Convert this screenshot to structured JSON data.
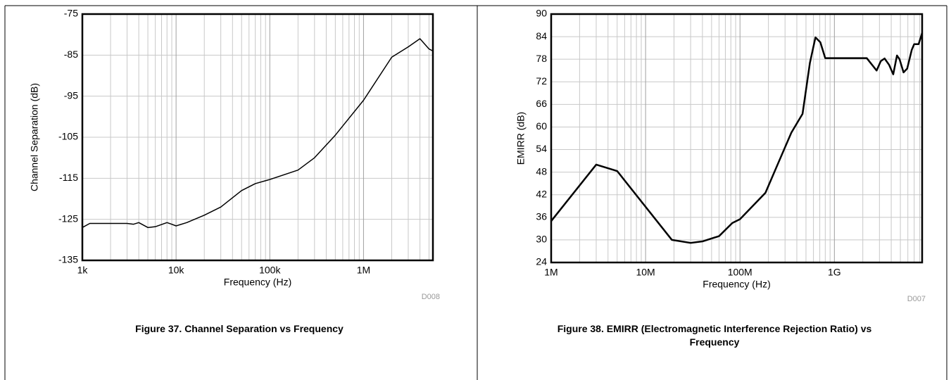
{
  "chart_data": [
    {
      "type": "line",
      "caption": "Figure 37. Channel Separation vs Frequency",
      "code": "D008",
      "xlabel": "Frequency (Hz)",
      "ylabel": "Channel Separation (dB)",
      "xscale": "log",
      "grid": true,
      "minor_grid": true,
      "color": "#000000",
      "line_width": 1.5,
      "xlim": [
        1000,
        5500000
      ],
      "ylim": [
        -135,
        -75
      ],
      "xticks": [
        {
          "value": 1000,
          "label": "1k"
        },
        {
          "value": 10000,
          "label": "10k"
        },
        {
          "value": 100000,
          "label": "100k"
        },
        {
          "value": 1000000,
          "label": "1M"
        }
      ],
      "yticks": [
        -135,
        -125,
        -115,
        -105,
        -95,
        -85,
        -75
      ],
      "x": [
        1000,
        1200,
        1500,
        2000,
        3000,
        3500,
        4000,
        5000,
        6000,
        8000,
        9000,
        10000,
        13000,
        20000,
        30000,
        50000,
        70000,
        100000,
        200000,
        300000,
        500000,
        1000000,
        2000000,
        3000000,
        4000000,
        5000000,
        5500000
      ],
      "values": [
        -127,
        -126,
        -126,
        -126,
        -126,
        -126.2,
        -125.8,
        -127,
        -126.8,
        -125.8,
        -126.2,
        -126.6,
        -125.8,
        -124,
        -122,
        -118,
        -116.3,
        -115.3,
        -113,
        -110,
        -104.5,
        -96,
        -85.5,
        -83,
        -81,
        -83.5,
        -84
      ]
    },
    {
      "type": "line",
      "caption": "Figure 38. EMIRR (Electromagnetic Interference Rejection Ratio) vs Frequency",
      "code": "D007",
      "xlabel": "Frequency (Hz)",
      "ylabel": "EMIRR (dB)",
      "xscale": "log",
      "grid": true,
      "minor_grid": true,
      "color": "#000000",
      "line_width": 2.5,
      "xlim": [
        1000000,
        8500000000
      ],
      "ylim": [
        24,
        90
      ],
      "xticks": [
        {
          "value": 1000000,
          "label": "1M"
        },
        {
          "value": 10000000,
          "label": "10M"
        },
        {
          "value": 100000000,
          "label": "100M"
        },
        {
          "value": 1000000000,
          "label": "1G"
        }
      ],
      "yticks": [
        24,
        30,
        36,
        42,
        48,
        54,
        60,
        66,
        72,
        78,
        84,
        90
      ],
      "x": [
        1000000,
        3000000,
        5000000,
        19000000,
        30000000,
        40000000,
        60000000,
        83000000,
        100000000,
        186000000,
        250000000,
        350000000,
        460000000,
        550000000,
        630000000,
        710000000,
        800000000,
        1500000000,
        2200000000,
        2800000000,
        3100000000,
        3400000000,
        3800000000,
        4200000000,
        4600000000,
        4900000000,
        5400000000,
        5900000000,
        6600000000,
        7000000000,
        7800000000,
        8500000000
      ],
      "values": [
        35,
        50,
        48.3,
        30,
        29.2,
        29.6,
        31,
        34.5,
        35.5,
        42.5,
        50,
        58.5,
        63.5,
        77,
        83.8,
        82.5,
        78.3,
        78.3,
        78.3,
        75,
        77.5,
        78.2,
        76.5,
        74,
        79,
        78,
        74.5,
        75.5,
        80.5,
        82,
        82,
        85
      ]
    }
  ]
}
